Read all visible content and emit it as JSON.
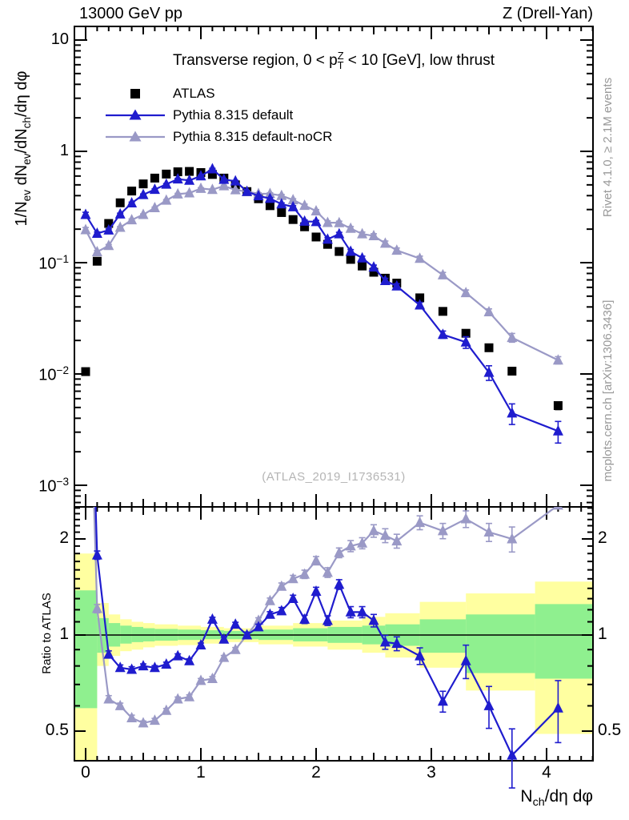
{
  "header": {
    "left_title": "13000 GeV pp",
    "right_title": "Z (Drell-Yan)"
  },
  "panel": {
    "title": "Transverse region, 0 < p^{Z}_{T} < 10 [GeV], low thrust",
    "watermark": "(ATLAS_2019_I1736531)",
    "y_label": "1/N_{ev} dN_{ev}/dN_{ch}/dη dφ",
    "x_label": "N_{ch}/dη dφ",
    "ratio_label": "Ratio to ATLAS",
    "side_note_right_top": "Rivet 4.1.0, ≥ 2.1M events",
    "side_note_right_bottom": "mcplots.cern.ch [arXiv:1306.3436]"
  },
  "legend": {
    "items": [
      {
        "label": "ATLAS",
        "marker": "square",
        "color": "#000000"
      },
      {
        "label": "Pythia 8.315 default",
        "marker": "triangle-line",
        "color": "#1f1cce"
      },
      {
        "label": "Pythia 8.315 default-noCR",
        "marker": "triangle-line",
        "color": "#9a99c6"
      }
    ]
  },
  "axes": {
    "x": {
      "tick_labels": [
        "0",
        "1",
        "2",
        "3",
        "4"
      ],
      "tick_values": [
        0,
        1,
        2,
        3,
        4
      ],
      "range": [
        -0.097,
        4.403
      ]
    },
    "y_main": {
      "scale": "log",
      "tick_labels": [
        "10",
        "1",
        "10^{−1}",
        "10^{−2}",
        "10^{−3}"
      ],
      "tick_values": [
        10,
        1,
        0.1,
        0.01,
        0.001
      ],
      "range": [
        0.00064,
        13.2
      ]
    },
    "y_ratio": {
      "scale": "log",
      "tick_labels": [
        "2",
        "1",
        "0.5"
      ],
      "tick_values": [
        2,
        1,
        0.5
      ],
      "range": [
        0.404,
        2.52
      ]
    }
  },
  "colors": {
    "atlas": "#000000",
    "pythia_default": "#1f1cce",
    "pythia_nocr": "#9a99c6",
    "band_green": "#8ff08f",
    "band_yellow": "#ffffa0",
    "watermark": "#b5b5b5",
    "side_note": "#999999"
  },
  "chart_data": {
    "type": "line",
    "title": "Transverse region, 0 < pT(Z) < 10 [GeV], low thrust",
    "xlabel": "Nch/dη dφ",
    "ylabel": "1/Nev dNev/dNch/dη dφ",
    "ratio_ylabel": "Ratio to ATLAS",
    "x": [
      0,
      0.1,
      0.2,
      0.3,
      0.4,
      0.5,
      0.6,
      0.7,
      0.8,
      0.9,
      1,
      1.1,
      1.2,
      1.3,
      1.4,
      1.5,
      1.6,
      1.7,
      1.8,
      1.9,
      2,
      2.1,
      2.2,
      2.3,
      2.4,
      2.5,
      2.6,
      2.7,
      2.9,
      3.1,
      3.3,
      3.5,
      3.7,
      4.1
    ],
    "series": [
      {
        "name": "ATLAS",
        "marker": "square",
        "color": "#000000",
        "values": [
          0.0105,
          0.103,
          0.225,
          0.345,
          0.44,
          0.51,
          0.575,
          0.625,
          0.655,
          0.66,
          0.645,
          0.62,
          0.575,
          0.5,
          0.435,
          0.375,
          0.325,
          0.282,
          0.244,
          0.21,
          0.17,
          0.146,
          0.126,
          0.107,
          0.0933,
          0.082,
          0.0725,
          0.0655,
          0.0483,
          0.0365,
          0.0232,
          0.0172,
          0.0106,
          0.0052
        ],
        "rel_err": [
          0.03,
          0.025,
          0.02,
          0.02,
          0.02,
          0.02,
          0.02,
          0.02,
          0.02,
          0.02,
          0.02,
          0.02,
          0.02,
          0.02,
          0.02,
          0.02,
          0.02,
          0.02,
          0.02,
          0.02,
          0.02,
          0.02,
          0.02,
          0.02,
          0.025,
          0.025,
          0.025,
          0.03,
          0.03,
          0.035,
          0.04,
          0.05,
          0.06,
          0.08
        ]
      },
      {
        "name": "Pythia 8.315 default",
        "marker": "triangle",
        "color": "#1f1cce",
        "values": [
          0.27,
          0.183,
          0.196,
          0.273,
          0.343,
          0.408,
          0.454,
          0.506,
          0.563,
          0.548,
          0.6,
          0.694,
          0.558,
          0.54,
          0.435,
          0.398,
          0.377,
          0.336,
          0.317,
          0.235,
          0.233,
          0.162,
          0.181,
          0.126,
          0.11,
          0.091,
          0.0689,
          0.0616,
          0.0415,
          0.0226,
          0.0193,
          0.0103,
          0.00445,
          0.00307
        ],
        "ratio_to_atlas": [
          25.7,
          1.78,
          0.87,
          0.79,
          0.78,
          0.8,
          0.79,
          0.81,
          0.86,
          0.83,
          0.93,
          1.12,
          0.97,
          1.08,
          1,
          1.06,
          1.16,
          1.19,
          1.3,
          1.12,
          1.37,
          1.11,
          1.44,
          1.18,
          1.18,
          1.11,
          0.95,
          0.94,
          0.86,
          0.62,
          0.83,
          0.6,
          0.42,
          0.59
        ],
        "rel_err": [
          0.05,
          0.03,
          0.025,
          0.02,
          0.02,
          0.015,
          0.015,
          0.015,
          0.015,
          0.015,
          0.015,
          0.015,
          0.015,
          0.015,
          0.02,
          0.02,
          0.02,
          0.025,
          0.025,
          0.03,
          0.03,
          0.035,
          0.035,
          0.04,
          0.04,
          0.045,
          0.05,
          0.05,
          0.06,
          0.075,
          0.12,
          0.15,
          0.21,
          0.22
        ]
      },
      {
        "name": "Pythia 8.315 default-noCR",
        "marker": "triangle",
        "color": "#9a99c6",
        "values": [
          0.197,
          0.125,
          0.142,
          0.207,
          0.242,
          0.27,
          0.311,
          0.363,
          0.413,
          0.422,
          0.464,
          0.453,
          0.489,
          0.45,
          0.435,
          0.416,
          0.416,
          0.4,
          0.366,
          0.326,
          0.291,
          0.229,
          0.228,
          0.203,
          0.181,
          0.174,
          0.149,
          0.129,
          0.109,
          0.0774,
          0.0536,
          0.0361,
          0.0212,
          0.0133
        ],
        "ratio_to_atlas": [
          18.8,
          1.21,
          0.63,
          0.6,
          0.55,
          0.53,
          0.54,
          0.58,
          0.63,
          0.64,
          0.72,
          0.73,
          0.85,
          0.9,
          1,
          1.11,
          1.28,
          1.42,
          1.5,
          1.55,
          1.71,
          1.57,
          1.81,
          1.9,
          1.94,
          2.12,
          2.05,
          1.97,
          2.25,
          2.12,
          2.31,
          2.1,
          2,
          2.55
        ],
        "rel_err": [
          0.05,
          0.03,
          0.025,
          0.02,
          0.02,
          0.015,
          0.015,
          0.015,
          0.015,
          0.015,
          0.015,
          0.015,
          0.015,
          0.015,
          0.02,
          0.02,
          0.02,
          0.025,
          0.025,
          0.03,
          0.03,
          0.035,
          0.035,
          0.04,
          0.04,
          0.045,
          0.05,
          0.05,
          0.05,
          0.055,
          0.06,
          0.065,
          0.09,
          0.075
        ]
      }
    ],
    "ratio_reference": 1,
    "ratio_bands": [
      {
        "x0": -0.097,
        "x1": 0.1,
        "green": [
          0.59,
          1.38
        ],
        "yellow": [
          0.4,
          1.8
        ]
      },
      {
        "x0": 0.1,
        "x1": 0.2,
        "green": [
          0.88,
          1.13
        ],
        "yellow": [
          0.8,
          1.26
        ]
      },
      {
        "x0": 0.2,
        "x1": 0.3,
        "green": [
          0.92,
          1.09
        ],
        "yellow": [
          0.86,
          1.16
        ]
      },
      {
        "x0": 0.3,
        "x1": 0.4,
        "green": [
          0.94,
          1.07
        ],
        "yellow": [
          0.89,
          1.12
        ]
      },
      {
        "x0": 0.4,
        "x1": 0.5,
        "green": [
          0.95,
          1.06
        ],
        "yellow": [
          0.9,
          1.1
        ]
      },
      {
        "x0": 0.5,
        "x1": 0.6,
        "green": [
          0.955,
          1.05
        ],
        "yellow": [
          0.915,
          1.09
        ]
      },
      {
        "x0": 0.6,
        "x1": 0.8,
        "green": [
          0.96,
          1.045
        ],
        "yellow": [
          0.925,
          1.08
        ]
      },
      {
        "x0": 0.8,
        "x1": 1.0,
        "green": [
          0.965,
          1.04
        ],
        "yellow": [
          0.93,
          1.07
        ]
      },
      {
        "x0": 1.0,
        "x1": 1.2,
        "green": [
          0.97,
          1.035
        ],
        "yellow": [
          0.94,
          1.06
        ]
      },
      {
        "x0": 1.2,
        "x1": 1.5,
        "green": [
          0.97,
          1.03
        ],
        "yellow": [
          0.95,
          1.05
        ]
      },
      {
        "x0": 1.5,
        "x1": 1.8,
        "green": [
          0.965,
          1.04
        ],
        "yellow": [
          0.935,
          1.07
        ]
      },
      {
        "x0": 1.8,
        "x1": 2.1,
        "green": [
          0.955,
          1.05
        ],
        "yellow": [
          0.92,
          1.09
        ]
      },
      {
        "x0": 2.1,
        "x1": 2.4,
        "green": [
          0.945,
          1.06
        ],
        "yellow": [
          0.9,
          1.11
        ]
      },
      {
        "x0": 2.4,
        "x1": 2.6,
        "green": [
          0.935,
          1.07
        ],
        "yellow": [
          0.88,
          1.14
        ]
      },
      {
        "x0": 2.6,
        "x1": 2.9,
        "green": [
          0.925,
          1.08
        ],
        "yellow": [
          0.85,
          1.17
        ]
      },
      {
        "x0": 2.9,
        "x1": 3.3,
        "green": [
          0.88,
          1.12
        ],
        "yellow": [
          0.79,
          1.27
        ]
      },
      {
        "x0": 3.3,
        "x1": 3.9,
        "green": [
          0.76,
          1.16
        ],
        "yellow": [
          0.67,
          1.35
        ]
      },
      {
        "x0": 3.9,
        "x1": 4.403,
        "green": [
          0.73,
          1.25
        ],
        "yellow": [
          0.49,
          1.47
        ]
      }
    ]
  }
}
